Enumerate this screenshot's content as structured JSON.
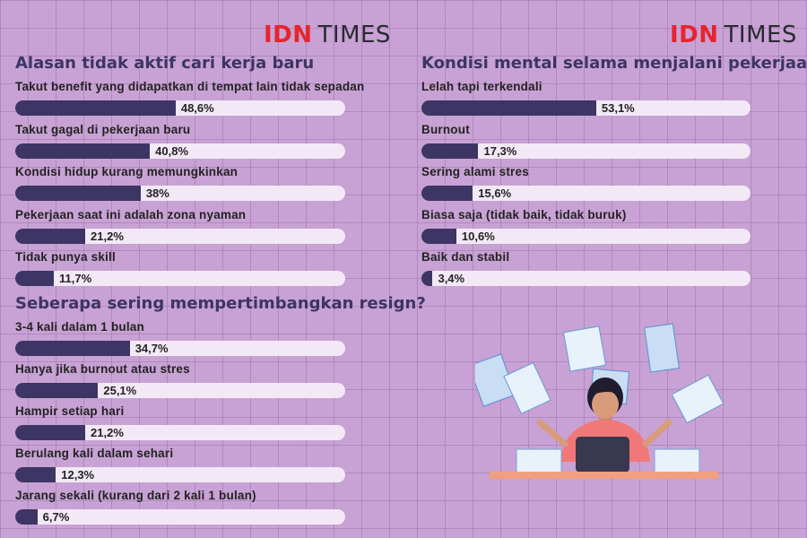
{
  "logos": [
    {
      "brand_a": "IDN",
      "brand_b": "TIMES"
    },
    {
      "brand_a": "IDN",
      "brand_b": "TIMES"
    }
  ],
  "colors": {
    "bar_fill": "#3d3564",
    "bar_track": "#f3e9f6",
    "background": "#c8a2d4",
    "logo_red": "#e8242c"
  },
  "chart_data": [
    {
      "type": "bar",
      "title": "Alasan tidak aktif cari kerja baru",
      "categories": [
        "Takut benefit yang didapatkan di tempat lain tidak sepadan",
        "Takut gagal di pekerjaan baru",
        "Kondisi hidup kurang memungkinkan",
        "Pekerjaan saat ini adalah zona nyaman",
        "Tidak punya skill"
      ],
      "values": [
        48.6,
        40.8,
        38,
        21.2,
        11.7
      ],
      "value_labels": [
        "48,6%",
        "40,8%",
        "38%",
        "21,2%",
        "11,7%"
      ],
      "ylim": [
        0,
        100
      ]
    },
    {
      "type": "bar",
      "title": "Seberapa sering mempertimbangkan resign?",
      "categories": [
        "3-4 kali dalam 1 bulan",
        "Hanya jika burnout atau stres",
        "Hampir setiap hari",
        "Berulang kali dalam sehari",
        "Jarang sekali (kurang dari 2 kali 1 bulan)"
      ],
      "values": [
        34.7,
        25.1,
        21.2,
        12.3,
        6.7
      ],
      "value_labels": [
        "34,7%",
        "25,1%",
        "21,2%",
        "12,3%",
        "6,7%"
      ],
      "ylim": [
        0,
        100
      ]
    },
    {
      "type": "bar",
      "title": "Kondisi mental selama menjalani pekerjaan",
      "categories": [
        "Lelah tapi terkendali",
        "Burnout",
        "Sering alami stres",
        "Biasa saja (tidak baik, tidak buruk)",
        "Baik dan stabil"
      ],
      "values": [
        53.1,
        17.3,
        15.6,
        10.6,
        3.4
      ],
      "value_labels": [
        "53,1%",
        "17,3%",
        "15,6%",
        "10,6%",
        "3,4%"
      ],
      "ylim": [
        0,
        100
      ]
    }
  ]
}
